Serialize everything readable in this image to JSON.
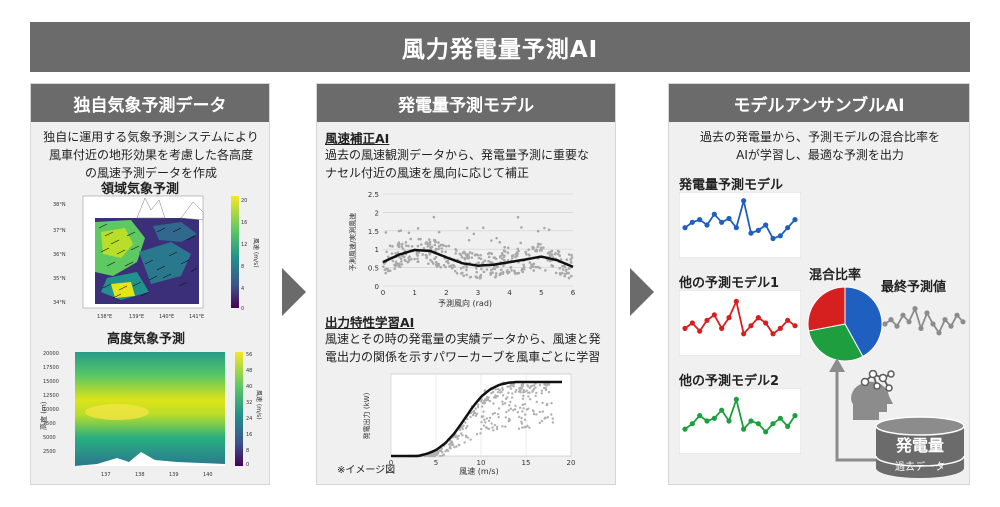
{
  "title": "風力発電量予測AI",
  "panel1": {
    "header": "独自気象予測データ",
    "desc": [
      "独自に運用する気象予測システムにより",
      "風車付近の地形効果を考慮した各高度",
      "の風速予測データを作成"
    ],
    "map_title": "領域気象予測",
    "map_cbar_label": "風速 (m/s)",
    "map_cbar_ticks": [
      "20",
      "16",
      "12",
      "8",
      "4",
      "0"
    ],
    "map_lat_ticks": [
      "38°N",
      "37°N",
      "36°N",
      "35°N",
      "34°N"
    ],
    "map_lon_ticks": [
      "138°E",
      "139°E",
      "140°E",
      "141°E"
    ],
    "height_title": "高度気象予測",
    "height_ylabel": "高度 (m)",
    "height_yticks": [
      "20000",
      "17500",
      "15000",
      "12500",
      "10000",
      "7500",
      "5000",
      "2500"
    ],
    "height_xticks": [
      "137",
      "138",
      "139",
      "140"
    ],
    "height_cbar_label": "風速 (m/s)",
    "height_cbar_ticks": [
      "56",
      "48",
      "40",
      "32",
      "24",
      "16",
      "8",
      "0"
    ]
  },
  "panel2": {
    "header": "発電量予測モデル",
    "sec1_title": "風速補正AI",
    "sec1_desc": [
      "過去の風速観測データから、発電量予測に重要な",
      "ナセル付近の風速を風向に応じて補正"
    ],
    "sec2_title": "出力特性学習AI",
    "sec2_desc": [
      "風速とその時の発電量の実績データから、風速と発",
      "電出力の関係を示すパワーカーブを風車ごとに学習"
    ],
    "note": "※イメージ図"
  },
  "panel3": {
    "header": "モデルアンサンブルAI",
    "desc": [
      "過去の発電量から、予測モデルの混合比率を",
      "AIが学習し、最適な予測を出力"
    ],
    "model_a": "発電量予測モデル",
    "model_b": "他の予測モデル1",
    "model_c": "他の予測モデル2",
    "mix_label": "混合比率",
    "final_label": "最終予測値",
    "db_label": "発電量",
    "db_sub": "過去データ"
  },
  "chart_data": [
    {
      "type": "scatter",
      "title": "",
      "xlabel": "予測風向 (rad)",
      "ylabel": "予測風速/実測風速",
      "xlim": [
        0,
        6
      ],
      "ylim": [
        0,
        2.5
      ],
      "x_ticks": [
        0,
        1,
        2,
        3,
        4,
        5,
        6
      ],
      "y_ticks": [
        0,
        0.5,
        1,
        1.5,
        2,
        2.5
      ],
      "trend": {
        "x": [
          0,
          0.5,
          1,
          1.5,
          2,
          2.5,
          3,
          3.5,
          4,
          4.5,
          5,
          5.5,
          6
        ],
        "y": [
          0.65,
          0.85,
          0.98,
          0.95,
          0.78,
          0.62,
          0.55,
          0.58,
          0.65,
          0.72,
          0.8,
          0.7,
          0.52
        ]
      }
    },
    {
      "type": "scatter",
      "title": "",
      "xlabel": "風速 (m/s)",
      "ylabel": "発電出力 (kW)",
      "xlim": [
        0,
        20
      ],
      "x_ticks": [
        0,
        5,
        10,
        15,
        20
      ],
      "power_curve": {
        "x": [
          0,
          3,
          4,
          5,
          6,
          7,
          8,
          9,
          10,
          11,
          12,
          13,
          14,
          16,
          19
        ],
        "y": [
          0,
          0,
          0.03,
          0.08,
          0.17,
          0.3,
          0.47,
          0.65,
          0.8,
          0.9,
          0.96,
          0.99,
          1.0,
          1.0,
          1.0
        ]
      }
    },
    {
      "type": "line",
      "series": [
        {
          "values": [
            0.45,
            0.55,
            0.6,
            0.5,
            0.7,
            0.55,
            0.62,
            0.45,
            0.95,
            0.35,
            0.4,
            0.5,
            0.25,
            0.3,
            0.45,
            0.6
          ],
          "color": "#1f5fbf"
        },
        {
          "values": [
            0.4,
            0.5,
            0.35,
            0.55,
            0.65,
            0.4,
            0.6,
            0.9,
            0.3,
            0.45,
            0.6,
            0.5,
            0.3,
            0.4,
            0.55,
            0.45
          ],
          "color": "#d62020"
        },
        {
          "values": [
            0.35,
            0.45,
            0.6,
            0.5,
            0.55,
            0.7,
            0.5,
            0.9,
            0.35,
            0.5,
            0.45,
            0.3,
            0.45,
            0.55,
            0.4,
            0.6
          ],
          "color": "#1e9e3e"
        },
        {
          "values": [
            0.5,
            0.6,
            0.45,
            0.7,
            0.55,
            0.85,
            0.4,
            0.75,
            0.5,
            0.3,
            0.6,
            0.45,
            0.7,
            0.55
          ],
          "color": "#8c8c8c"
        }
      ]
    },
    {
      "type": "pie",
      "values": [
        0.42,
        0.3,
        0.28
      ],
      "colors": [
        "#1f5fbf",
        "#1e9e3e",
        "#d62020"
      ]
    }
  ],
  "colors": {
    "header": "#6b6b6b",
    "panel": "#f0f0f0",
    "blue": "#1f5fbf",
    "red": "#d62020",
    "green": "#1e9e3e",
    "gray": "#8c8c8c"
  }
}
